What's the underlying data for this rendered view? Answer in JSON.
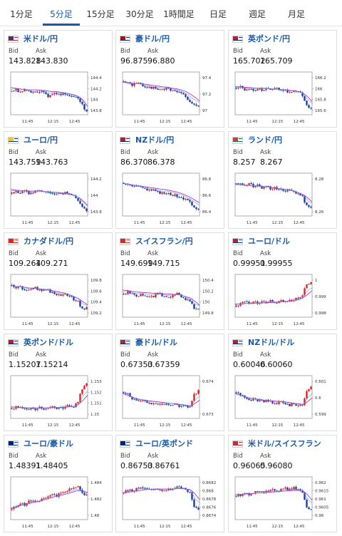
{
  "tabs": [
    "1分足",
    "5分足",
    "15分足",
    "30分足",
    "1時間足",
    "日足",
    "週足",
    "月足"
  ],
  "active_tab": 1,
  "bid_label": "Bid",
  "ask_label": "Ask",
  "x_ticks": [
    "11:45",
    "12:15",
    "12:45"
  ],
  "pairs": [
    {
      "name": "米ドル/円",
      "bid": "143.828",
      "ask": "143.830",
      "flag": [
        "#b22234",
        "#3c3b6e"
      ],
      "chart_data": {
        "type": "candlestick",
        "trend": [
          0.5,
          0.55,
          0.45,
          0.6,
          0.5,
          0.45,
          0.5,
          0.55,
          0.35,
          0.4,
          0.45,
          0.4,
          0.45,
          0.4,
          0.35,
          0.3,
          0.1,
          -0.1
        ],
        "ma": [
          0.62,
          0.6,
          0.58,
          0.56,
          0.55,
          0.55,
          0.55,
          0.54,
          0.52,
          0.5,
          0.5,
          0.48,
          0.46,
          0.43,
          0.4,
          0.35,
          0.25,
          0.05
        ],
        "y_ticks": [
          "144.4",
          "144.2",
          "144",
          "143.8"
        ]
      }
    },
    {
      "name": "豪ドル/円",
      "bid": "96.875",
      "ask": "96.880",
      "flag": [
        "#00247d",
        "#cc0000"
      ],
      "chart_data": {
        "type": "candlestick",
        "trend": [
          0.8,
          0.75,
          0.7,
          0.75,
          0.7,
          0.65,
          0.62,
          0.6,
          0.58,
          0.56,
          0.6,
          0.55,
          0.5,
          0.45,
          0.35,
          0.2,
          0.1,
          0.05
        ],
        "ma": [
          0.78,
          0.76,
          0.75,
          0.74,
          0.73,
          0.72,
          0.7,
          0.68,
          0.66,
          0.64,
          0.63,
          0.6,
          0.58,
          0.55,
          0.5,
          0.42,
          0.33,
          0.22
        ],
        "y_ticks": [
          "97.4",
          "97.2",
          "97"
        ]
      }
    },
    {
      "name": "英ポンド/円",
      "bid": "165.702",
      "ask": "165.709",
      "flag": [
        "#00247d",
        "#cf142b"
      ],
      "chart_data": {
        "type": "candlestick",
        "trend": [
          0.6,
          0.65,
          0.55,
          0.6,
          0.55,
          0.6,
          0.55,
          0.6,
          0.55,
          0.6,
          0.5,
          0.55,
          0.45,
          0.55,
          0.5,
          0.4,
          0.1,
          0.0
        ],
        "ma": [
          0.65,
          0.64,
          0.63,
          0.62,
          0.61,
          0.6,
          0.6,
          0.59,
          0.58,
          0.57,
          0.56,
          0.55,
          0.54,
          0.52,
          0.5,
          0.45,
          0.35,
          0.2
        ],
        "y_ticks": [
          "166.2",
          "166",
          "165.8",
          "165.6"
        ]
      }
    },
    {
      "name": "ユーロ/円",
      "bid": "143.759",
      "ask": "143.763",
      "flag": [
        "#003399",
        "#ffcc00"
      ],
      "chart_data": {
        "type": "candlestick",
        "trend": [
          0.5,
          0.55,
          0.5,
          0.55,
          0.45,
          0.5,
          0.6,
          0.55,
          0.5,
          0.45,
          0.5,
          0.45,
          0.5,
          0.45,
          0.4,
          0.3,
          0.1,
          -0.05
        ],
        "ma": [
          0.6,
          0.58,
          0.57,
          0.56,
          0.55,
          0.55,
          0.55,
          0.54,
          0.53,
          0.52,
          0.51,
          0.5,
          0.48,
          0.45,
          0.42,
          0.36,
          0.26,
          0.12
        ],
        "y_ticks": [
          "144.2",
          "144",
          "143.8"
        ]
      }
    },
    {
      "name": "NZドル/円",
      "bid": "86.370",
      "ask": "86.378",
      "flag": [
        "#00247d",
        "#cc142b"
      ],
      "chart_data": {
        "type": "candlestick",
        "trend": [
          0.8,
          0.75,
          0.7,
          0.72,
          0.65,
          0.6,
          0.58,
          0.55,
          0.5,
          0.48,
          0.5,
          0.45,
          0.4,
          0.38,
          0.3,
          0.2,
          0.1,
          0.0
        ],
        "ma": [
          0.78,
          0.76,
          0.74,
          0.72,
          0.7,
          0.68,
          0.66,
          0.64,
          0.62,
          0.6,
          0.58,
          0.55,
          0.52,
          0.48,
          0.42,
          0.36,
          0.28,
          0.2
        ],
        "y_ticks": [
          "86.8",
          "86.6",
          "86.4"
        ]
      }
    },
    {
      "name": "ランド/円",
      "bid": "8.257",
      "ask": "8.267",
      "flag": [
        "#007a4d",
        "#de3831"
      ],
      "chart_data": {
        "type": "candlestick",
        "trend": [
          0.75,
          0.8,
          0.7,
          0.75,
          0.7,
          0.72,
          0.65,
          0.7,
          0.6,
          0.65,
          0.6,
          0.55,
          0.6,
          0.5,
          0.45,
          0.4,
          0.1,
          0.05
        ],
        "ma": [
          0.75,
          0.74,
          0.73,
          0.72,
          0.71,
          0.7,
          0.69,
          0.68,
          0.66,
          0.64,
          0.62,
          0.6,
          0.58,
          0.55,
          0.5,
          0.45,
          0.35,
          0.22
        ],
        "y_ticks": [
          "8.28",
          "8.26"
        ]
      }
    },
    {
      "name": "カナダドル/円",
      "bid": "109.264",
      "ask": "109.271",
      "flag": [
        "#d52b1e",
        "#d52b1e"
      ],
      "chart_data": {
        "type": "candlestick",
        "trend": [
          0.75,
          0.7,
          0.72,
          0.6,
          0.65,
          0.7,
          0.62,
          0.6,
          0.65,
          0.55,
          0.5,
          0.45,
          0.5,
          0.45,
          0.35,
          0.3,
          0.05,
          0.1
        ],
        "ma": [
          0.75,
          0.73,
          0.72,
          0.7,
          0.68,
          0.67,
          0.66,
          0.64,
          0.62,
          0.6,
          0.58,
          0.55,
          0.52,
          0.48,
          0.42,
          0.36,
          0.26,
          0.18
        ],
        "y_ticks": [
          "109.8",
          "109.6",
          "109.4",
          "109.2"
        ]
      }
    },
    {
      "name": "スイスフラン/円",
      "bid": "149.699",
      "ask": "149.715",
      "flag": [
        "#d52b1e",
        "#d52b1e"
      ],
      "chart_data": {
        "type": "candlestick",
        "trend": [
          0.5,
          0.55,
          0.5,
          0.45,
          0.5,
          0.45,
          0.4,
          0.45,
          0.5,
          0.45,
          0.4,
          0.45,
          0.5,
          0.45,
          0.35,
          0.3,
          0.05,
          0.05
        ],
        "ma": [
          0.62,
          0.6,
          0.58,
          0.56,
          0.55,
          0.54,
          0.53,
          0.52,
          0.52,
          0.5,
          0.5,
          0.49,
          0.48,
          0.46,
          0.42,
          0.38,
          0.28,
          0.16
        ],
        "y_ticks": [
          "150.4",
          "150.2",
          "150",
          "149.8"
        ]
      }
    },
    {
      "name": "ユーロ/ドル",
      "bid": "0.99951",
      "ask": "0.99955",
      "flag": [
        "#003399",
        "#b22234"
      ],
      "chart_data": {
        "type": "candlestick",
        "trend": [
          0.15,
          0.2,
          0.25,
          0.2,
          0.25,
          0.2,
          0.25,
          0.2,
          0.3,
          0.25,
          0.3,
          0.25,
          0.35,
          0.3,
          0.4,
          0.45,
          0.8,
          0.85
        ],
        "ma": [
          0.2,
          0.2,
          0.21,
          0.22,
          0.22,
          0.22,
          0.23,
          0.24,
          0.24,
          0.25,
          0.26,
          0.27,
          0.28,
          0.3,
          0.33,
          0.38,
          0.48,
          0.6
        ],
        "y_ticks": [
          "1",
          "0.999",
          "0.998"
        ]
      }
    },
    {
      "name": "英ポンド/ドル",
      "bid": "1.15207",
      "ask": "1.15214",
      "flag": [
        "#00247d",
        "#b22234"
      ],
      "chart_data": {
        "type": "candlestick",
        "trend": [
          0.1,
          0.15,
          0.1,
          0.12,
          0.1,
          0.08,
          0.12,
          0.1,
          0.12,
          0.15,
          0.12,
          0.1,
          0.15,
          0.2,
          0.15,
          0.3,
          0.7,
          0.85
        ],
        "ma": [
          0.15,
          0.14,
          0.13,
          0.13,
          0.12,
          0.12,
          0.12,
          0.12,
          0.12,
          0.13,
          0.13,
          0.13,
          0.14,
          0.15,
          0.17,
          0.22,
          0.35,
          0.5
        ],
        "y_ticks": [
          "1.153",
          "1.152",
          "1.151",
          "1.15"
        ]
      }
    },
    {
      "name": "豪ドル/ドル",
      "bid": "0.67353",
      "ask": "0.67359",
      "flag": [
        "#00247d",
        "#b22234"
      ],
      "chart_data": {
        "type": "candlestick",
        "trend": [
          0.6,
          0.55,
          0.4,
          0.3,
          0.35,
          0.3,
          0.25,
          0.3,
          0.2,
          0.25,
          0.2,
          0.25,
          0.2,
          0.15,
          0.2,
          0.1,
          0.5,
          0.65
        ],
        "ma": [
          0.55,
          0.5,
          0.45,
          0.4,
          0.37,
          0.35,
          0.33,
          0.31,
          0.3,
          0.28,
          0.26,
          0.25,
          0.24,
          0.22,
          0.2,
          0.18,
          0.25,
          0.35
        ],
        "y_ticks": [
          "0.674",
          "0.673"
        ]
      }
    },
    {
      "name": "NZドル/ドル",
      "bid": "0.60046",
      "ask": "0.60060",
      "flag": [
        "#00247d",
        "#b22234"
      ],
      "chart_data": {
        "type": "candlestick",
        "trend": [
          0.55,
          0.5,
          0.45,
          0.35,
          0.4,
          0.35,
          0.3,
          0.35,
          0.3,
          0.25,
          0.3,
          0.25,
          0.2,
          0.25,
          0.2,
          0.15,
          0.6,
          0.75
        ],
        "ma": [
          0.55,
          0.5,
          0.46,
          0.42,
          0.4,
          0.38,
          0.36,
          0.34,
          0.33,
          0.32,
          0.31,
          0.3,
          0.28,
          0.26,
          0.24,
          0.22,
          0.3,
          0.42
        ],
        "y_ticks": [
          "0.601",
          "0.6",
          "0.599"
        ]
      }
    },
    {
      "name": "ユーロ/豪ドル",
      "bid": "1.48391",
      "ask": "1.48405",
      "flag": [
        "#003399",
        "#00247d"
      ],
      "chart_data": {
        "type": "candlestick",
        "trend": [
          0.1,
          0.2,
          0.3,
          0.25,
          0.35,
          0.4,
          0.35,
          0.45,
          0.5,
          0.55,
          0.5,
          0.6,
          0.65,
          0.7,
          0.75,
          0.8,
          0.6,
          0.55
        ],
        "ma": [
          0.15,
          0.18,
          0.22,
          0.25,
          0.28,
          0.32,
          0.35,
          0.38,
          0.42,
          0.46,
          0.5,
          0.53,
          0.56,
          0.6,
          0.64,
          0.68,
          0.66,
          0.62
        ],
        "y_ticks": [
          "1.484",
          "1.482",
          "1.48"
        ]
      }
    },
    {
      "name": "ユーロ/英ポンド",
      "bid": "0.86753",
      "ask": "0.86761",
      "flag": [
        "#003399",
        "#00247d"
      ],
      "chart_data": {
        "type": "candlestick",
        "trend": [
          0.6,
          0.7,
          0.65,
          0.75,
          0.8,
          0.75,
          0.7,
          0.75,
          0.7,
          0.65,
          0.75,
          0.7,
          0.8,
          0.75,
          0.7,
          0.65,
          0.2,
          0.1
        ],
        "ma": [
          0.6,
          0.62,
          0.64,
          0.66,
          0.68,
          0.7,
          0.71,
          0.72,
          0.72,
          0.72,
          0.72,
          0.72,
          0.73,
          0.73,
          0.72,
          0.7,
          0.58,
          0.4
        ],
        "y_ticks": [
          "0.8682",
          "0.868",
          "0.8678",
          "0.8676",
          "0.8674"
        ]
      }
    },
    {
      "name": "米ドル/スイスフラン",
      "bid": "0.96065",
      "ask": "0.96080",
      "flag": [
        "#b22234",
        "#d52b1e"
      ],
      "chart_data": {
        "type": "candlestick",
        "trend": [
          0.5,
          0.55,
          0.6,
          0.55,
          0.6,
          0.65,
          0.6,
          0.65,
          0.7,
          0.65,
          0.7,
          0.75,
          0.7,
          0.75,
          0.7,
          0.65,
          0.2,
          0.1
        ],
        "ma": [
          0.55,
          0.56,
          0.57,
          0.58,
          0.59,
          0.6,
          0.61,
          0.62,
          0.63,
          0.64,
          0.65,
          0.66,
          0.67,
          0.68,
          0.68,
          0.67,
          0.55,
          0.38
        ],
        "y_ticks": [
          "0.962",
          "0.9615",
          "0.961",
          "0.9605",
          "0.96"
        ]
      }
    }
  ]
}
